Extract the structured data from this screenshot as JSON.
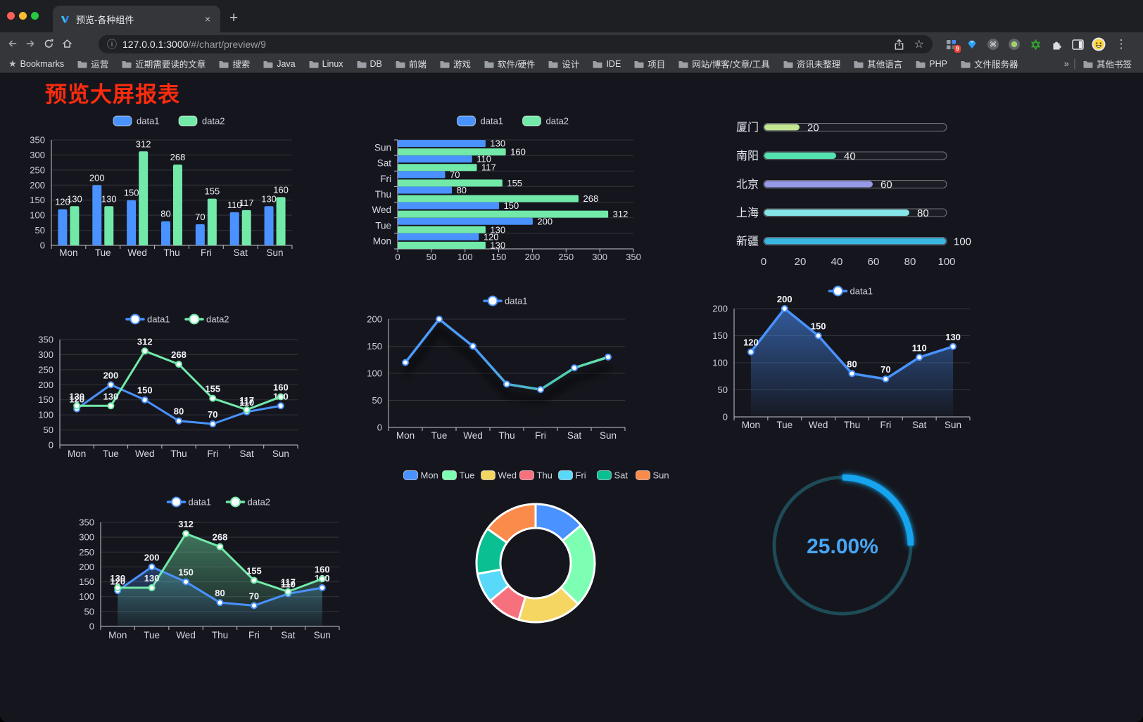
{
  "browser": {
    "tab_title": "预览-各种组件",
    "url_host": "127.0.0.1:3000",
    "url_path": "/#/chart/preview/9",
    "bookmarks_label": "Bookmarks",
    "bookmarks": [
      "运营",
      "近期需要读的文章",
      "搜索",
      "Java",
      "Linux",
      "DB",
      "前端",
      "游戏",
      "软件/硬件",
      "设计",
      "IDE",
      "项目",
      "网站/博客/文章/工具",
      "资讯未整理",
      "其他语言",
      "PHP",
      "文件服务器"
    ],
    "overflow_glyph": "»",
    "other_bookmarks": "其他书签",
    "extension_badge": "9",
    "glyphs": {
      "close": "×",
      "new_tab": "+",
      "menu": "⋮",
      "star": "☆",
      "bookmarks_star": "★",
      "info": "ⓘ",
      "command": "⌘",
      "divider": "|"
    }
  },
  "page": {
    "title": "预览大屏报表",
    "title_color": "#ff2b0e",
    "background": "#15161d"
  },
  "chart_data": [
    {
      "id": "bar-grouped",
      "type": "bar",
      "categories": [
        "Mon",
        "Tue",
        "Wed",
        "Thu",
        "Fri",
        "Sat",
        "Sun"
      ],
      "series": [
        {
          "name": "data1",
          "color": "#4992ff",
          "values": [
            120,
            200,
            150,
            80,
            70,
            110,
            130
          ]
        },
        {
          "name": "data2",
          "color": "#72e9a9",
          "values": [
            130,
            130,
            312,
            268,
            155,
            117,
            160
          ]
        }
      ],
      "ylim": [
        0,
        350
      ],
      "ytick": 50,
      "legend_position": "top",
      "grid": true,
      "value_labels": true
    },
    {
      "id": "hbar-grouped",
      "type": "bar-horizontal",
      "categories": [
        "Mon",
        "Tue",
        "Wed",
        "Thu",
        "Fri",
        "Sat",
        "Sun"
      ],
      "categories_note": "first category at bottom, Sun at top",
      "series": [
        {
          "name": "data1",
          "color": "#4992ff",
          "values": [
            120,
            200,
            150,
            80,
            70,
            110,
            130
          ]
        },
        {
          "name": "data2",
          "color": "#72e9a9",
          "values": [
            130,
            130,
            312,
            268,
            155,
            117,
            160
          ]
        }
      ],
      "xlim": [
        0,
        350
      ],
      "xtick": 50,
      "legend_position": "top",
      "grid": true,
      "value_labels": true
    },
    {
      "id": "progress-bars",
      "type": "progress",
      "items": [
        {
          "label": "厦门",
          "value": 20,
          "color": "#c3e693"
        },
        {
          "label": "南阳",
          "value": 40,
          "color": "#55e2b1"
        },
        {
          "label": "北京",
          "value": 60,
          "color": "#9699e6"
        },
        {
          "label": "上海",
          "value": 80,
          "color": "#84e4e6"
        },
        {
          "label": "新疆",
          "value": 100,
          "color": "#3ab7e0"
        }
      ],
      "xlim": [
        0,
        100
      ],
      "xticks": [
        0,
        20,
        40,
        60,
        80,
        100
      ]
    },
    {
      "id": "line-two-series",
      "type": "line",
      "categories": [
        "Mon",
        "Tue",
        "Wed",
        "Thu",
        "Fri",
        "Sat",
        "Sun"
      ],
      "series": [
        {
          "name": "data1",
          "color": "#4992ff",
          "values": [
            120,
            200,
            150,
            80,
            70,
            110,
            130
          ]
        },
        {
          "name": "data2",
          "color": "#72e9a9",
          "values": [
            130,
            130,
            312,
            268,
            155,
            117,
            160
          ]
        }
      ],
      "ylim": [
        0,
        350
      ],
      "ytick": 50,
      "legend_position": "top",
      "value_labels": true
    },
    {
      "id": "line-gradient",
      "type": "line",
      "categories": [
        "Mon",
        "Tue",
        "Wed",
        "Thu",
        "Fri",
        "Sat",
        "Sun"
      ],
      "series": [
        {
          "name": "data1",
          "gradient": [
            "#4c9bfa",
            "#4c9bfa",
            "#4fc8b4",
            "#72eea6"
          ],
          "marker_color": "#4992ff",
          "values": [
            120,
            200,
            150,
            80,
            70,
            110,
            130
          ]
        }
      ],
      "ylim": [
        0,
        200
      ],
      "ytick": 50,
      "legend_position": "top",
      "value_labels": false
    },
    {
      "id": "area-single",
      "type": "area",
      "categories": [
        "Mon",
        "Tue",
        "Wed",
        "Thu",
        "Fri",
        "Sat",
        "Sun"
      ],
      "series": [
        {
          "name": "data1",
          "color": "#4992ff",
          "fill": true,
          "values": [
            120,
            200,
            150,
            80,
            70,
            110,
            130
          ]
        }
      ],
      "ylim": [
        0,
        200
      ],
      "ytick": 50,
      "legend_position": "top",
      "value_labels": true
    },
    {
      "id": "area-two-series",
      "type": "area",
      "categories": [
        "Mon",
        "Tue",
        "Wed",
        "Thu",
        "Fri",
        "Sat",
        "Sun"
      ],
      "series": [
        {
          "name": "data1",
          "color": "#4992ff",
          "fill": true,
          "values": [
            120,
            200,
            150,
            80,
            70,
            110,
            130
          ]
        },
        {
          "name": "data2",
          "color": "#72e9a9",
          "fill": true,
          "values": [
            130,
            130,
            312,
            268,
            155,
            117,
            160
          ]
        }
      ],
      "ylim": [
        0,
        350
      ],
      "ytick": 50,
      "legend_position": "top",
      "value_labels": true
    },
    {
      "id": "donut",
      "type": "pie",
      "categories": [
        "Mon",
        "Tue",
        "Wed",
        "Thu",
        "Fri",
        "Sat",
        "Sun"
      ],
      "values": [
        120,
        200,
        150,
        80,
        70,
        110,
        130
      ],
      "colors": [
        "#4992ff",
        "#7cffb2",
        "#f5d663",
        "#f6707e",
        "#58d9f9",
        "#0ac092",
        "#fb8b4a"
      ],
      "inner_radius_ratio": 0.6,
      "border_color": "#ffffff",
      "legend_position": "top"
    },
    {
      "id": "gauge",
      "type": "gauge",
      "value": 25,
      "label": "25.00%",
      "color": "#12a4ef",
      "track_color": "#1d4b57",
      "text_color": "#46a6f3"
    }
  ]
}
